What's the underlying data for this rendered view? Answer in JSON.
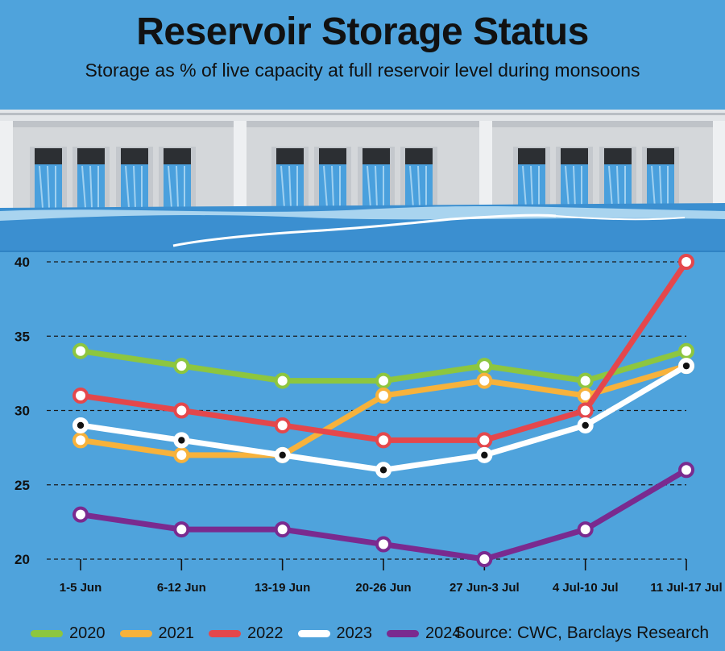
{
  "header": {
    "title": "Reservoir Storage Status",
    "subtitle": "Storage as % of live capacity at full reservoir level during monsoons"
  },
  "source": "Source: CWC, Barclays Research",
  "colors": {
    "background": "#4fa3dc",
    "dam": "#d9dcdf",
    "water": "#3b8fd0",
    "series": [
      "#8dc63f",
      "#f7b23b",
      "#e4474c",
      "#ffffff",
      "#7a2a8f"
    ]
  },
  "chart_data": {
    "type": "line",
    "title": "Reservoir Storage Status",
    "xlabel": "",
    "ylabel": "",
    "ylim": [
      20,
      40
    ],
    "yticks": [
      "20",
      "25",
      "30",
      "35",
      "40"
    ],
    "grid": true,
    "legend": "bottom-left",
    "categories": [
      "1-5 Jun",
      "6-12 Jun",
      "13-19 Jun",
      "20-26 Jun",
      "27 Jun-3 Jul",
      "4 Jul-10 Jul",
      "11 Jul-17 Jul"
    ],
    "series": [
      {
        "name": "2020",
        "color": "#8dc63f",
        "values": [
          34,
          33,
          32,
          32,
          33,
          32,
          34
        ]
      },
      {
        "name": "2021",
        "color": "#f7b23b",
        "values": [
          28,
          27,
          27,
          31,
          32,
          31,
          33
        ]
      },
      {
        "name": "2022",
        "color": "#e4474c",
        "values": [
          31,
          30,
          29,
          28,
          28,
          30,
          40
        ]
      },
      {
        "name": "2023",
        "color": "#ffffff",
        "values": [
          29,
          28,
          27,
          26,
          27,
          29,
          33
        ]
      },
      {
        "name": "2024",
        "color": "#7a2a8f",
        "values": [
          23,
          22,
          22,
          21,
          20,
          22,
          26
        ]
      }
    ]
  }
}
